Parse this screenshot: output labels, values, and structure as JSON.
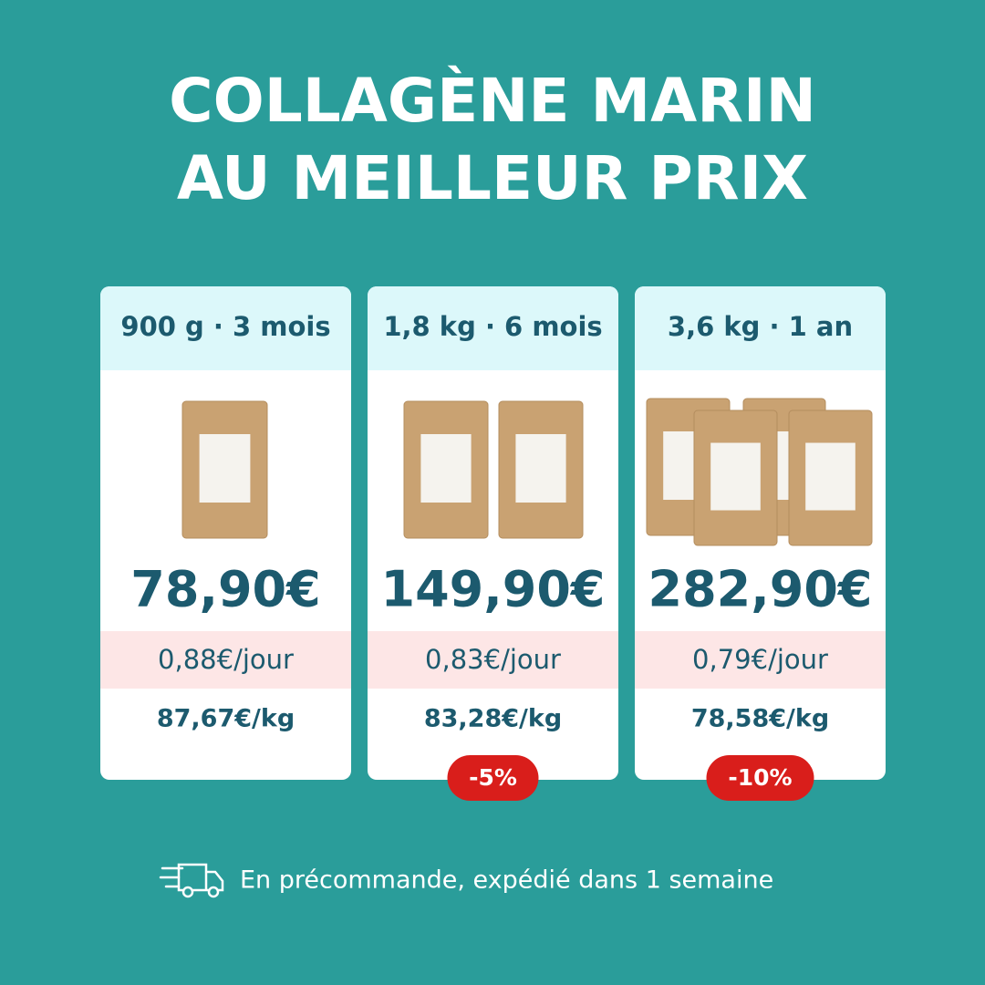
{
  "title": {
    "line1": "COLLAGÈNE MARIN",
    "line2": "AU MEILLEUR PRIX"
  },
  "cards": [
    {
      "header": "900 g · 3 mois",
      "price": "78,90€",
      "per_day": "0,88€/jour",
      "per_kg": "87,67€/kg"
    },
    {
      "header": "1,8 kg · 6 mois",
      "price": "149,90€",
      "per_day": "0,83€/jour",
      "per_kg": "83,28€/kg",
      "badge": "-5%"
    },
    {
      "header": "3,6 kg · 1 an",
      "price": "282,90€",
      "per_day": "0,79€/jour",
      "per_kg": "78,58€/kg",
      "badge": "-10%"
    }
  ],
  "footer": {
    "text": "En précommande, expédié dans 1 semaine"
  }
}
